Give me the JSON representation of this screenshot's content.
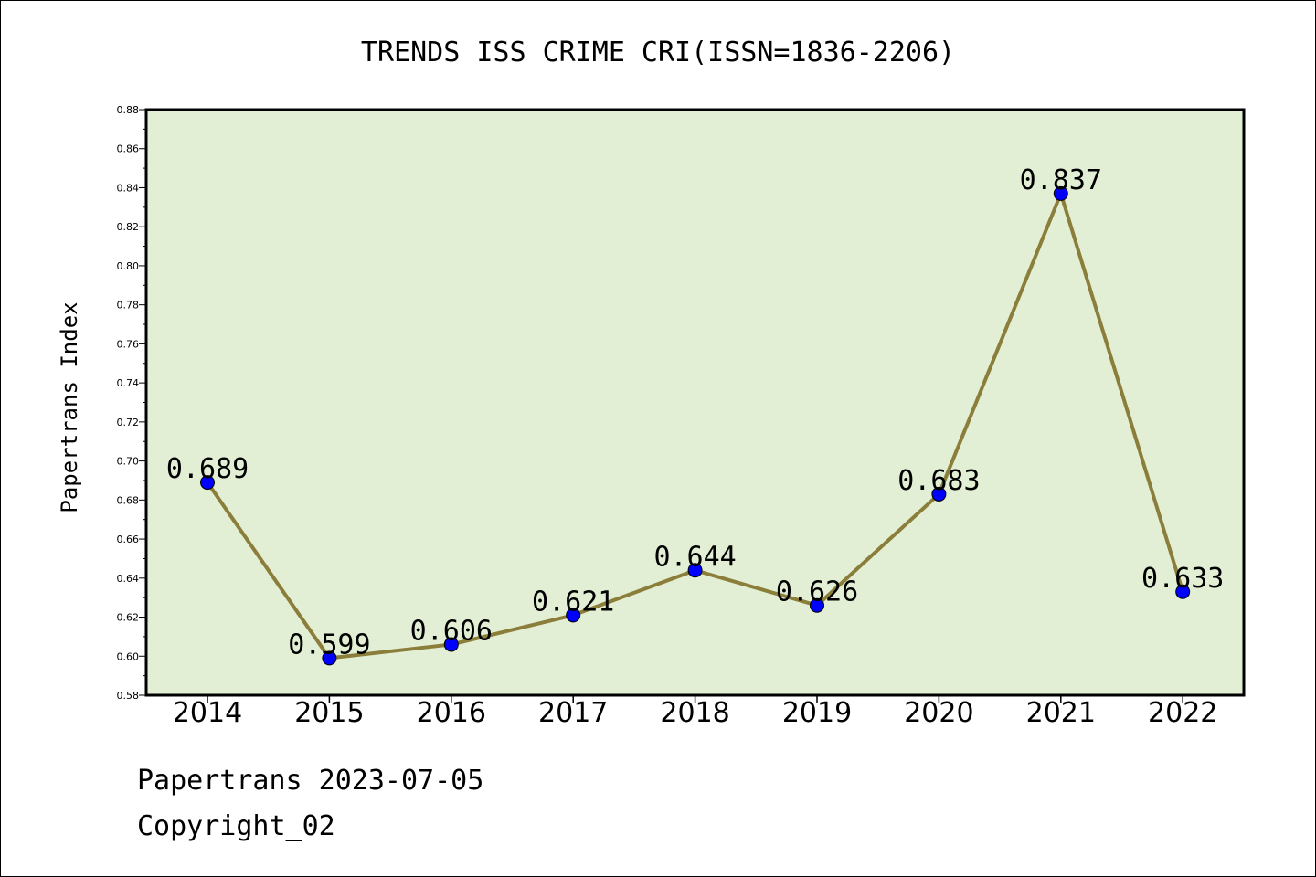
{
  "chart_data": {
    "type": "line",
    "title": "TRENDS ISS CRIME CRI(ISSN=1836-2206)",
    "xlabel": "",
    "ylabel": "Papertrans Index",
    "categories": [
      "2014",
      "2015",
      "2016",
      "2017",
      "2018",
      "2019",
      "2020",
      "2021",
      "2022"
    ],
    "values": [
      0.689,
      0.599,
      0.606,
      0.621,
      0.644,
      0.626,
      0.683,
      0.837,
      0.633
    ],
    "data_labels": [
      "0.689",
      "0.599",
      "0.606",
      "0.621",
      "0.644",
      "0.626",
      "0.683",
      "0.837",
      "0.633"
    ],
    "ylim": [
      0.58,
      0.88
    ],
    "yticks": [
      "0.58",
      "0.60",
      "0.62",
      "0.64",
      "0.66",
      "0.68",
      "0.70",
      "0.72",
      "0.74",
      "0.76",
      "0.78",
      "0.80",
      "0.82",
      "0.84",
      "0.86",
      "0.88"
    ],
    "grid": false,
    "legend": "none",
    "colors": {
      "line": "#8b7d3a",
      "marker": "#0000ff",
      "plot_background": "#e2efd4"
    }
  },
  "footer": {
    "line1": "Papertrans 2023-07-05",
    "line2": "Copyright_02"
  }
}
